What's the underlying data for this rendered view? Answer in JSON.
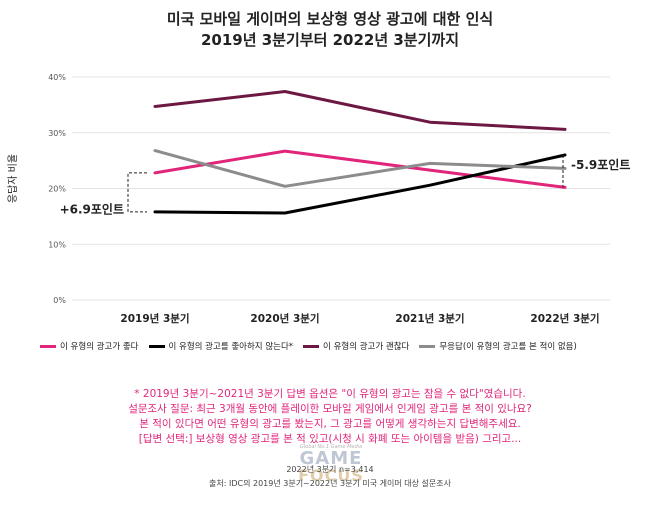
{
  "title_line1": "미국 모바일 게이머의 보상형 영상 광고에 대한 인식",
  "title_line2": "2019년 3분기부터 2022년 3분기까지",
  "chart_data": {
    "type": "line",
    "categories": [
      "2019년 3분기",
      "2020년 3분기",
      "2021년 3분기",
      "2022년 3분기"
    ],
    "ylabel": "응답자 비율",
    "ylim": [
      0,
      40
    ],
    "yticks": [
      "0%",
      "10%",
      "20%",
      "30%",
      "40%"
    ],
    "grid": true,
    "legend_position": "bottom",
    "series": [
      {
        "name": "이 유형의 광고가 좋다",
        "color": "#e0257b",
        "values": [
          22.8,
          26.7,
          23.3,
          20.2
        ]
      },
      {
        "name": "이 유형의 광고를 좋아하지 않는다*",
        "color": "#000000",
        "values": [
          15.8,
          15.6,
          20.6,
          26.0
        ]
      },
      {
        "name": "이 유형의 광고가 괜찮다",
        "color": "#6d1842",
        "values": [
          34.7,
          37.4,
          31.9,
          30.6
        ]
      },
      {
        "name": "무응답(이 유형의 광고를 본 적이 없음)",
        "color": "#8c8c8c",
        "values": [
          26.8,
          20.4,
          24.5,
          23.6
        ]
      }
    ],
    "annotations": {
      "left": "+6.9포인트",
      "right": "-5.9포인트"
    }
  },
  "footnote_lines": [
    "* 2019년 3분기~2021년 3분기 답변 옵션은 \"이 유형의 광고는 참을 수 없다\"였습니다.",
    "설문조사 질문: 최근 3개월 동안에 플레이한 모바일 게임에서 인게임 광고를 본 적이 있나요?",
    "본 적이 있다면 어떤 유형의 광고를 봤는지, 그 광고를 어떻게 생각하는지 답변해주세요.",
    "[답변 선택:] 보상형 영상 광고를 본 적 있고(시청 시 화폐 또는 아이템을 받음) 그리고..."
  ],
  "sample": "2022년 3분기 n=3,414",
  "source": "출처: IDC의 2019년 3분기~2022년 3분기 미국 게이머 대상 설문조사",
  "logo": {
    "tagline": "Global No.1 Game Media",
    "word1": "GAME",
    "word2": "FOCUS"
  }
}
